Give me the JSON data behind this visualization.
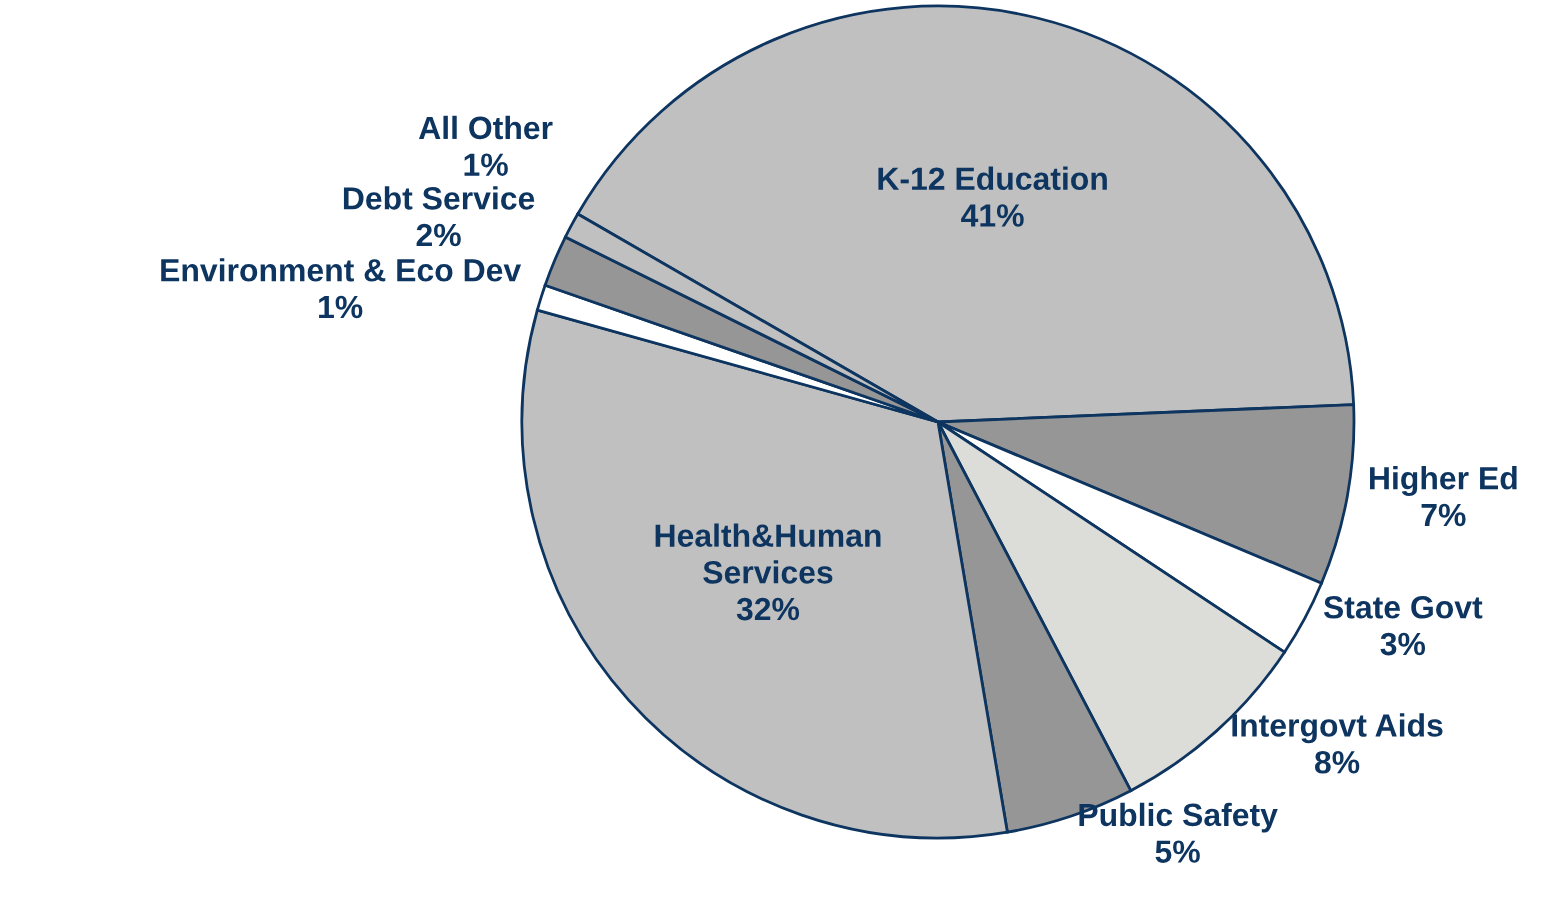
{
  "chart_data": {
    "type": "pie",
    "categories": [
      "K-12 Education",
      "Higher Ed",
      "State Govt",
      "Intergovt Aids",
      "Public Safety",
      "Health&Human\nServices",
      "Environment & Eco Dev",
      "Debt Service",
      "All Other"
    ],
    "values": [
      41,
      7,
      3,
      8,
      5,
      32,
      1,
      2,
      1
    ],
    "value_labels": [
      "41%",
      "7%",
      "3%",
      "8%",
      "5%",
      "32%",
      "1%",
      "2%",
      "1%"
    ],
    "colors": [
      "#c0c0c0",
      "#969696",
      "#ffffff",
      "#dcdcd8",
      "#969696",
      "#c0c0c0",
      "#ffffff",
      "#969696",
      "#c0c0c0"
    ]
  }
}
